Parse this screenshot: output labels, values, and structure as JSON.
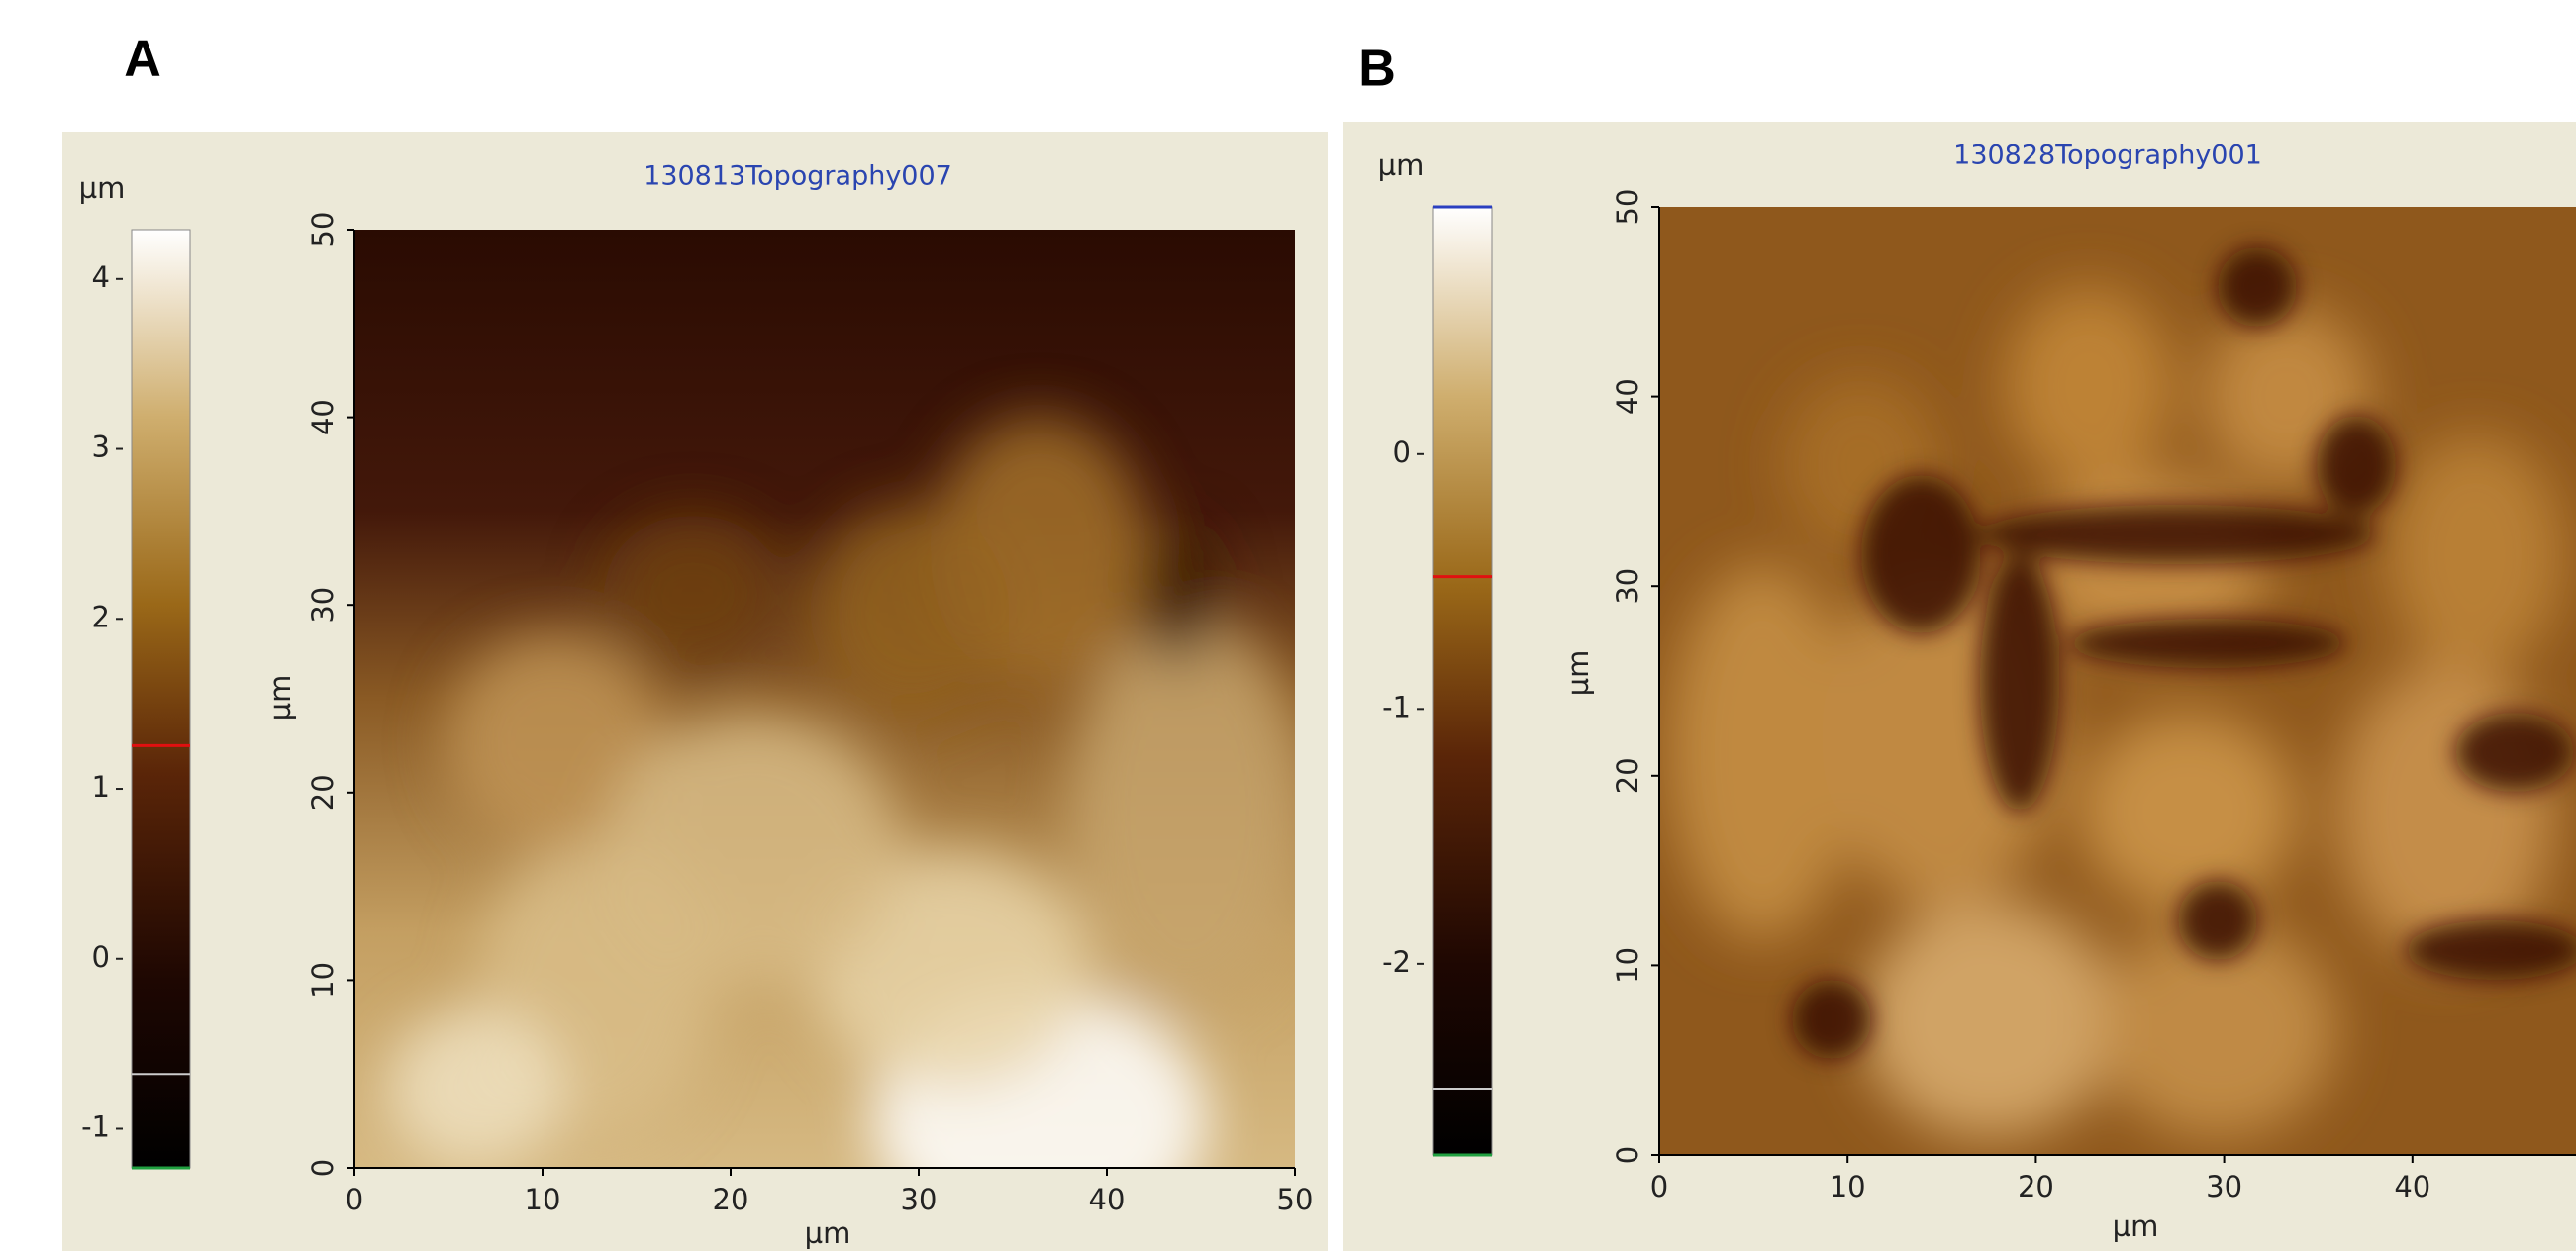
{
  "chart_data": [
    {
      "type": "image",
      "panel_label": "A",
      "title": "130813Topography007",
      "xlabel": "µm",
      "ylabel": "µm",
      "xlim": [
        0,
        50
      ],
      "ylim": [
        0,
        50
      ],
      "xticks": [
        0,
        10,
        20,
        30,
        40,
        50
      ],
      "yticks": [
        0,
        10,
        20,
        30,
        40,
        50
      ],
      "colorbar": {
        "label": "µm",
        "lim": [
          -1.23,
          4.29
        ],
        "ticks": [
          -1,
          0,
          1,
          2,
          3,
          4
        ]
      }
    },
    {
      "type": "image",
      "panel_label": "B",
      "title": "130828Topography001",
      "xlabel": "µm",
      "ylabel": "µm",
      "xlim": [
        0,
        50
      ],
      "ylim": [
        0,
        50
      ],
      "xticks": [
        0,
        10,
        20,
        30,
        40
      ],
      "yticks": [
        0,
        10,
        20,
        30,
        40,
        50
      ],
      "colorbar": {
        "label": "µm",
        "lim": [
          -2.75,
          0.97
        ],
        "ticks": [
          -2,
          -1,
          0
        ]
      }
    }
  ]
}
